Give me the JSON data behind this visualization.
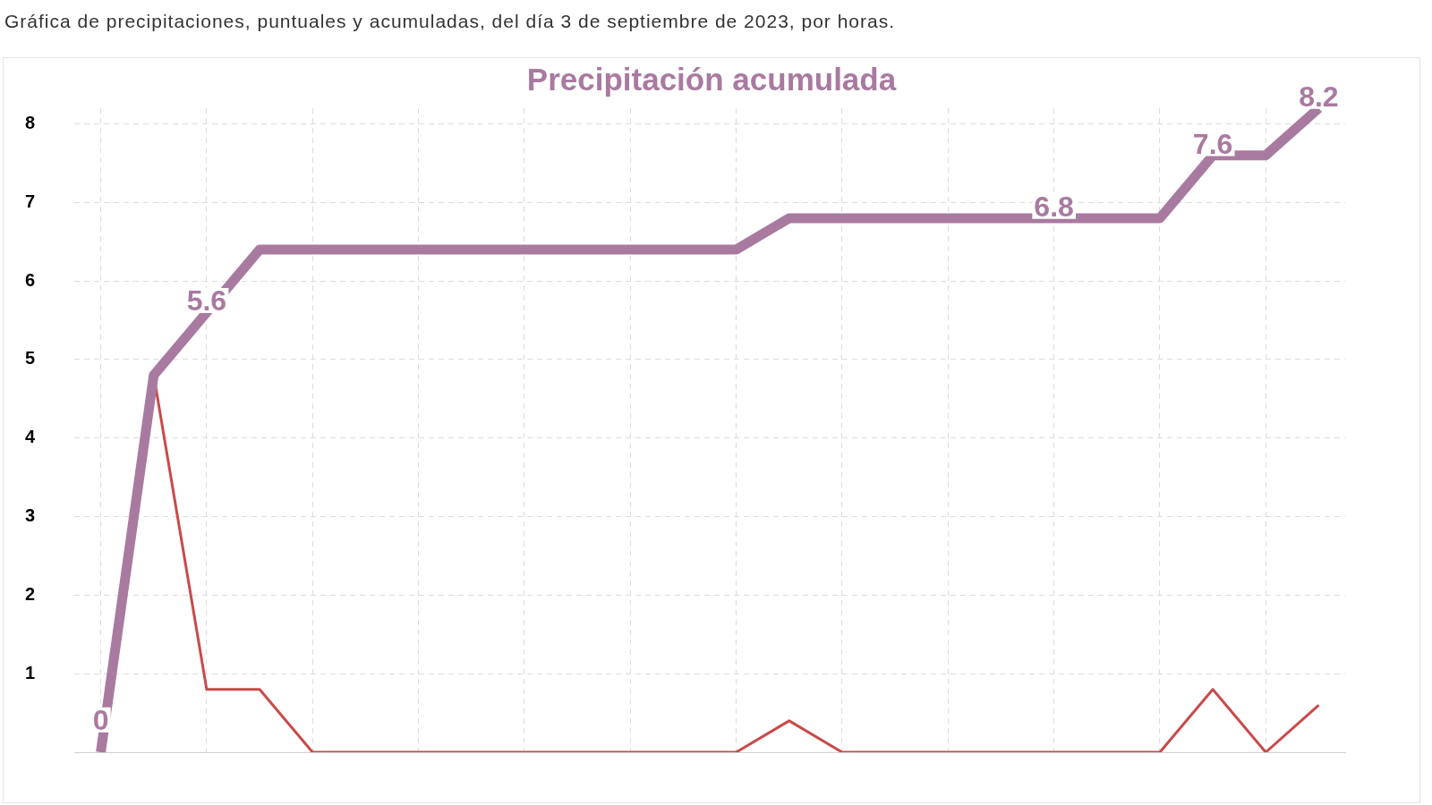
{
  "chart_data": {
    "type": "line",
    "title": "Precipitación acumulada",
    "subtitle": "Gráfica de precipitaciones, puntuales y acumuladas, del día 3 de septiembre de 2023, por horas.",
    "categories": [
      null,
      null,
      null,
      null,
      null,
      null,
      null,
      null,
      null,
      null,
      null,
      null,
      null,
      null,
      null,
      null,
      null,
      null,
      null,
      null,
      null,
      null,
      null,
      null
    ],
    "series": [
      {
        "color": "#a97aa0",
        "values": [
          0,
          4.8,
          5.6,
          6.4,
          6.4,
          6.4,
          6.4,
          6.4,
          6.4,
          6.4,
          6.4,
          6.4,
          6.4,
          6.8,
          6.8,
          6.8,
          6.8,
          6.8,
          6.8,
          6.8,
          6.8,
          7.6,
          7.6,
          8.2
        ],
        "value_labels": [
          "0",
          null,
          "5.6",
          null,
          null,
          null,
          null,
          null,
          null,
          null,
          null,
          null,
          null,
          null,
          null,
          null,
          null,
          null,
          "6.8",
          null,
          null,
          "7.6",
          null,
          "8.2"
        ]
      },
      {
        "color": "#c94a4a",
        "values": [
          0,
          4.8,
          0.8,
          0.8,
          0,
          0,
          0,
          0,
          0,
          0,
          0,
          0,
          0,
          0.4,
          0,
          0,
          0,
          0,
          0,
          0,
          0,
          0.8,
          0,
          0.6
        ]
      }
    ],
    "ylim": [
      0,
      8.2
    ],
    "yticks": [
      1,
      2,
      3,
      4,
      5,
      6,
      7,
      8
    ],
    "grid": true
  }
}
